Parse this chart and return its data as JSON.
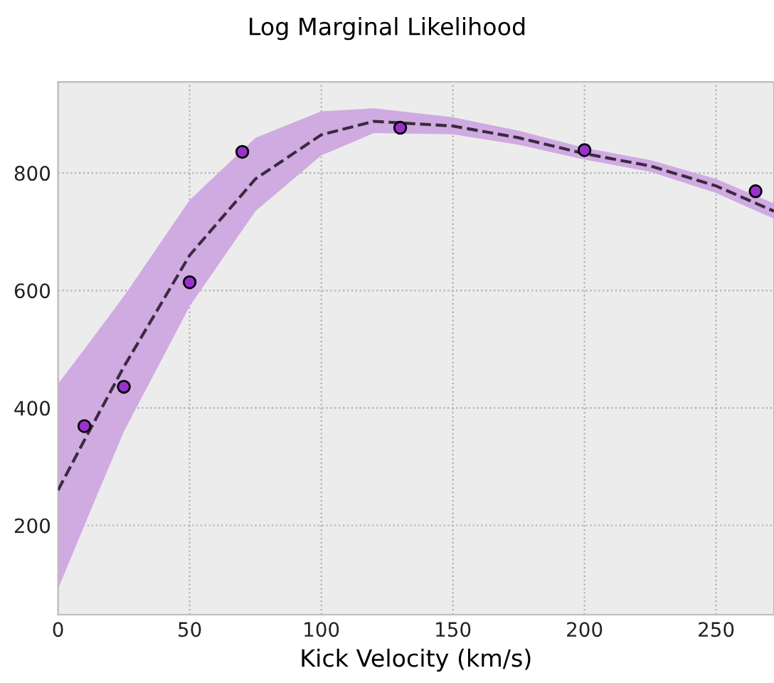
{
  "chart_data": {
    "type": "scatter",
    "title": "Log Marginal Likelihood",
    "xlabel": "Kick Velocity (km/s)",
    "xlim": [
      0,
      272
    ],
    "ylim": [
      48,
      955
    ],
    "xticks": [
      0,
      50,
      100,
      150,
      200,
      250
    ],
    "yticks": [
      200,
      400,
      600,
      800
    ],
    "grid": true,
    "series": [
      {
        "type": "scatter",
        "color": "#9932cc",
        "marker": "circle",
        "x": [
          10,
          25,
          50,
          70,
          130,
          200,
          265
        ],
        "values": [
          369,
          436,
          614,
          836,
          877,
          839,
          769
        ]
      },
      {
        "type": "line",
        "color": "#3b2a40",
        "line_style": "dashed",
        "marker": "none",
        "x": [
          0,
          10,
          25,
          50,
          75,
          100,
          120,
          150,
          175,
          200,
          225,
          250,
          272
        ],
        "values": [
          260,
          345,
          470,
          660,
          790,
          865,
          888,
          880,
          860,
          833,
          812,
          778,
          735
        ],
        "lower": [
          92,
          200,
          360,
          573,
          735,
          830,
          868,
          866,
          848,
          823,
          802,
          766,
          722
        ],
        "upper": [
          441,
          500,
          590,
          754,
          860,
          905,
          910,
          895,
          872,
          843,
          822,
          790,
          748
        ]
      }
    ]
  }
}
